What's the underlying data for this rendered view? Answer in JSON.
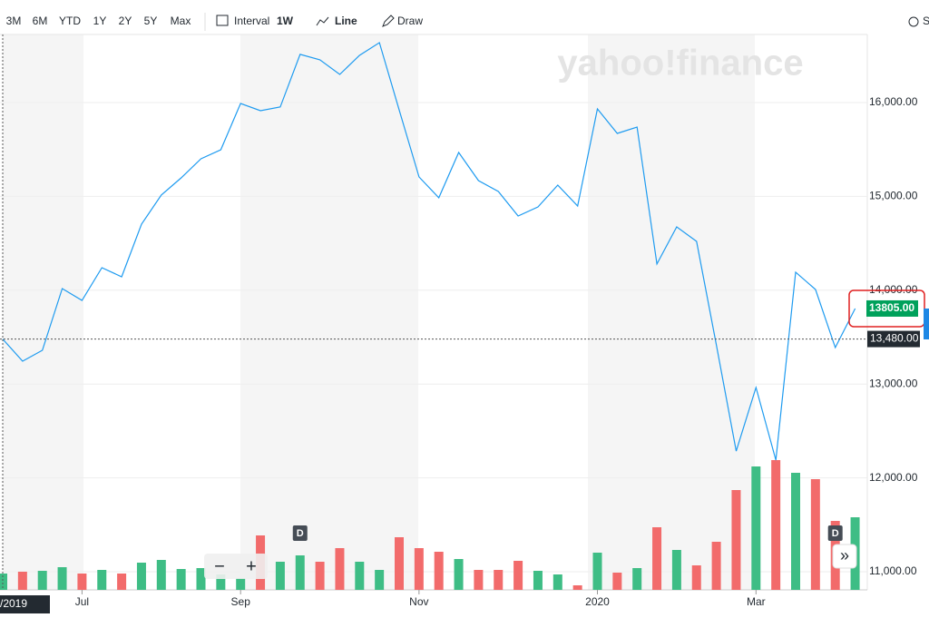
{
  "toolbar": {
    "ranges": [
      "3M",
      "6M",
      "YTD",
      "1Y",
      "2Y",
      "5Y",
      "Max"
    ],
    "interval_label": "Interval",
    "interval_value": "1W",
    "chart_style": "Line",
    "draw": "Draw",
    "settings": "S"
  },
  "watermark": "yahoo!finance",
  "controls": {
    "zoom_out": "−",
    "zoom_in": "+",
    "scroll": "»"
  },
  "chart_data": {
    "type": "line",
    "categories": [
      "/2019",
      null,
      null,
      null,
      "Jul",
      null,
      null,
      null,
      null,
      null,
      null,
      null,
      "Sep",
      null,
      null,
      null,
      null,
      null,
      null,
      null,
      null,
      "Nov",
      null,
      null,
      null,
      null,
      null,
      null,
      null,
      null,
      "2020",
      null,
      null,
      null,
      null,
      null,
      null,
      null,
      "Mar",
      null,
      null,
      null,
      null,
      null
    ],
    "series": [
      {
        "name": "Close",
        "color": "#1e9bf0",
        "values": [
          13480,
          13244,
          13360,
          14017,
          13892,
          14240,
          14143,
          14704,
          15014,
          15197,
          15400,
          15497,
          15990,
          15913,
          15952,
          16513,
          16455,
          16300,
          16503,
          16638,
          15920,
          15207,
          14985,
          15468,
          15168,
          15052,
          14791,
          14888,
          15120,
          14897,
          15932,
          15671,
          15739,
          14279,
          14675,
          14520,
          13418,
          12286,
          12963,
          12190,
          14192,
          14008,
          13389,
          13805
        ]
      }
    ],
    "volume": {
      "values": [
        18,
        20,
        21,
        25,
        18,
        22,
        18,
        30,
        33,
        23,
        24,
        17,
        13,
        60,
        31,
        38,
        31,
        46,
        31,
        22,
        58,
        46,
        42,
        34,
        22,
        22,
        32,
        21,
        17,
        5,
        41,
        19,
        24,
        69,
        44,
        27,
        53,
        110,
        136,
        143,
        129,
        122,
        76,
        80
      ],
      "up": [
        true,
        false,
        true,
        true,
        false,
        true,
        false,
        true,
        true,
        true,
        true,
        true,
        true,
        false,
        true,
        true,
        false,
        false,
        true,
        true,
        false,
        false,
        false,
        true,
        false,
        false,
        false,
        true,
        true,
        false,
        true,
        false,
        true,
        false,
        true,
        false,
        false,
        false,
        true,
        false,
        true,
        false,
        false,
        true
      ],
      "up_color": "#3ebd85",
      "down_color": "#f26b6b"
    },
    "events": [
      {
        "index": 15,
        "label": "D"
      },
      {
        "index": 42,
        "label": "D"
      }
    ],
    "ylim": [
      10807,
      16725
    ],
    "yticks": [
      {
        "value": 11000,
        "label": "11,000.00"
      },
      {
        "value": 12000,
        "label": "12,000.00"
      },
      {
        "value": 13000,
        "label": "13,000.00"
      },
      {
        "value": 14000,
        "label": "14,000.00"
      },
      {
        "value": 15000,
        "label": "15,000.00"
      },
      {
        "value": 16000,
        "label": "16,000.00"
      }
    ],
    "crosshair": {
      "value": 13480,
      "label": "13,480.00"
    },
    "last_price": {
      "value": 13805,
      "label": "13805.00"
    },
    "grid": true
  }
}
